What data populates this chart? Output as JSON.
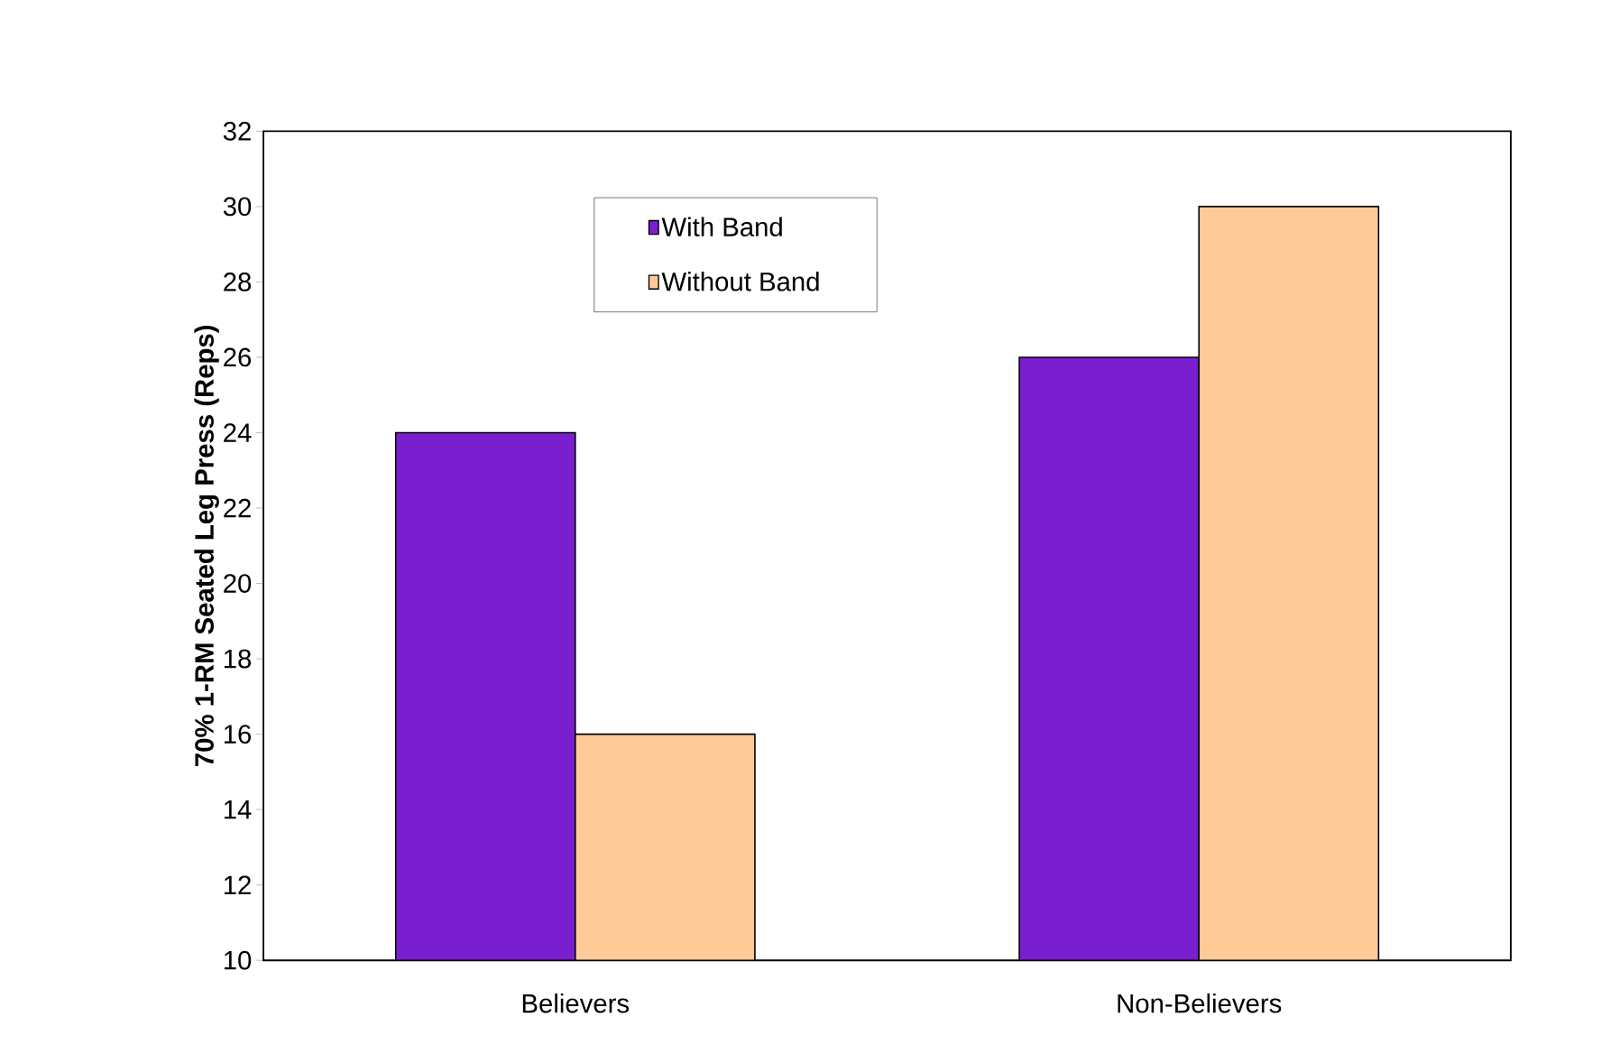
{
  "chart_data": {
    "type": "bar",
    "ylabel": "70% 1-RM Seated Leg Press (Reps)",
    "categories": [
      "Believers",
      "Non-Believers"
    ],
    "series": [
      {
        "name": "With Band",
        "color": "#7a1fd0",
        "values": [
          24,
          26
        ]
      },
      {
        "name": "Without Band",
        "color": "#fecb98",
        "values": [
          16,
          30
        ]
      }
    ],
    "ylim": [
      10,
      32
    ],
    "yticks": [
      10,
      12,
      14,
      16,
      18,
      20,
      22,
      24,
      26,
      28,
      30,
      32
    ],
    "grid": false,
    "legend": "top"
  }
}
